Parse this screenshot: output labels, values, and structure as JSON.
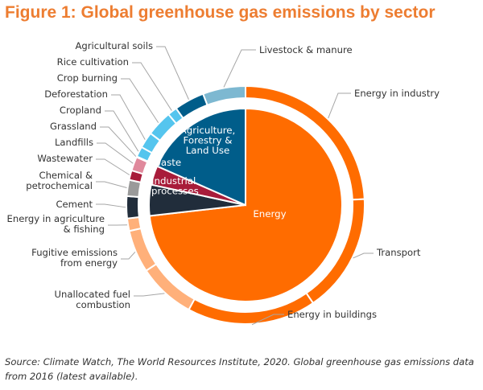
{
  "title": "Figure 1: Global greenhouse gas emissions by sector",
  "source": "Source: Climate Watch, The World Resources Institute, 2020. Global greenhouse gas emissions data from 2016 (latest available).",
  "colors": {
    "energy": "#ff6c00",
    "energy_light": "#ffb07a",
    "industrial": "#212d3b",
    "waste": "#a81c3a",
    "waste_light": "#e0899c",
    "afolu": "#005d8a",
    "afolu_light": "#55c5ee",
    "afolu_livestock": "#7db8d1",
    "ring_gray": "#9a9a9a",
    "title": "#ed7d31"
  },
  "chart_data": {
    "type": "pie",
    "title": "Figure 1: Global greenhouse gas emissions by sector",
    "inner": [
      {
        "label": "Energy",
        "value": 73.2,
        "color": "energy"
      },
      {
        "label": "Industrial processes",
        "value": 5.2,
        "color": "industrial"
      },
      {
        "label": "Waste",
        "value": 3.2,
        "color": "waste"
      },
      {
        "label": "Agriculture, Forestry & Land Use",
        "value": 18.4,
        "color": "afolu"
      }
    ],
    "outer": [
      {
        "label": "Energy in industry",
        "value": 24.2,
        "color": "energy"
      },
      {
        "label": "Transport",
        "value": 16.2,
        "color": "energy"
      },
      {
        "label": "Energy in buildings",
        "value": 17.5,
        "color": "energy"
      },
      {
        "label": "Unallocated fuel combustion",
        "value": 7.8,
        "color": "energy_light"
      },
      {
        "label": "Fugitive emissions from energy",
        "value": 5.8,
        "color": "energy_light"
      },
      {
        "label": "Energy in agriculture & fishing",
        "value": 1.7,
        "color": "energy_light"
      },
      {
        "label": "Cement",
        "value": 3.0,
        "color": "industrial"
      },
      {
        "label": "Chemical & petrochemical",
        "value": 2.2,
        "color": "ring_gray"
      },
      {
        "label": "Wastewater",
        "value": 1.3,
        "color": "waste"
      },
      {
        "label": "Landfills",
        "value": 1.9,
        "color": "waste_light"
      },
      {
        "label": "Grassland",
        "value": 0.1,
        "color": "afolu_light"
      },
      {
        "label": "Cropland",
        "value": 1.4,
        "color": "afolu_light"
      },
      {
        "label": "Deforestation",
        "value": 2.2,
        "color": "afolu_light"
      },
      {
        "label": "Crop burning",
        "value": 3.5,
        "color": "afolu_light"
      },
      {
        "label": "Rice cultivation",
        "value": 1.3,
        "color": "afolu_light"
      },
      {
        "label": "Agricultural soils",
        "value": 4.1,
        "color": "afolu"
      },
      {
        "label": "Livestock & manure",
        "value": 5.8,
        "color": "afolu_livestock"
      }
    ]
  }
}
